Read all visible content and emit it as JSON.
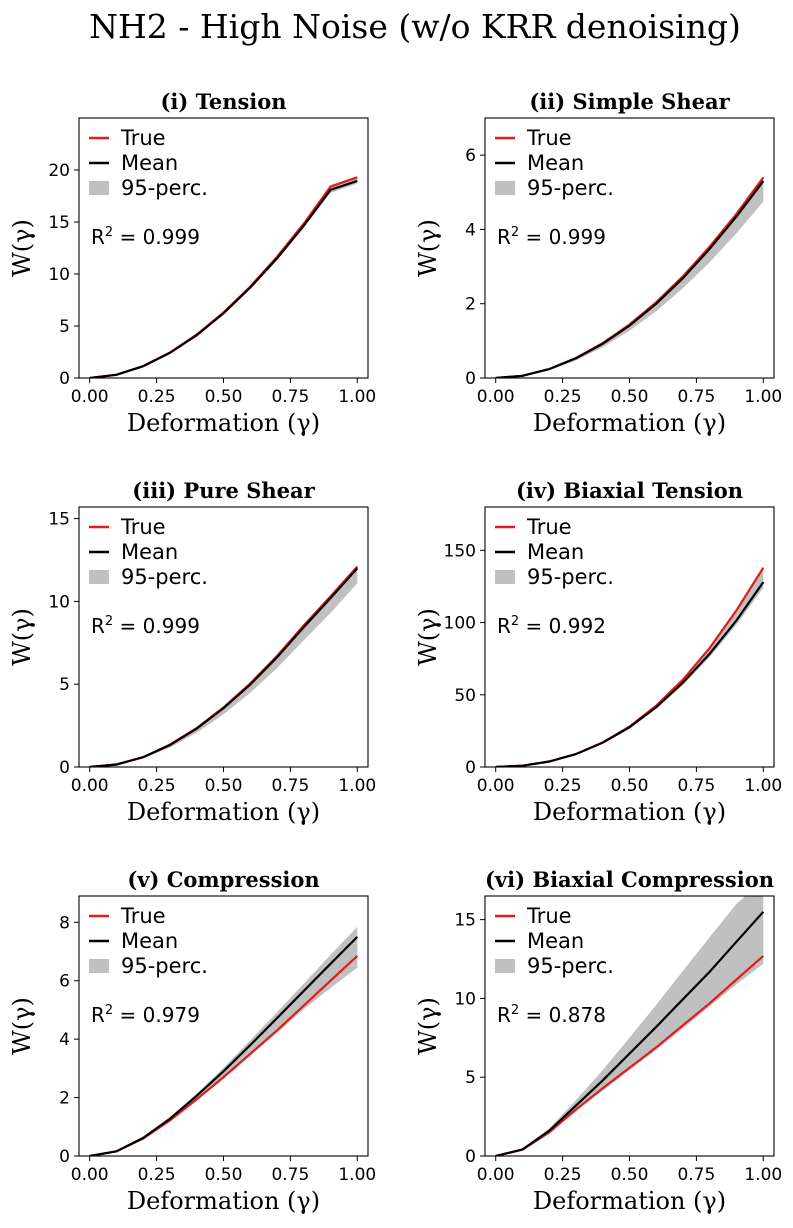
{
  "figure": {
    "title": "NH2 - High Noise (w/o KRR denoising)",
    "colors": {
      "true": "#e41a1c",
      "mean": "#000000",
      "band": "#c0c0c0"
    },
    "legend": {
      "true": "True",
      "mean": "Mean",
      "band": "95-perc."
    }
  },
  "chart_data": [
    {
      "type": "line",
      "title": "(i) Tension",
      "xlabel": "Deformation (γ)",
      "ylabel": "W(γ)",
      "xlim": [
        -0.04,
        1.04
      ],
      "ylim": [
        0,
        25
      ],
      "xticks": [
        "0.00",
        "0.25",
        "0.50",
        "0.75",
        "1.00"
      ],
      "yticks": [
        0,
        5,
        10,
        15,
        20
      ],
      "r2": "0.999",
      "x": [
        0,
        0.1,
        0.2,
        0.3,
        0.4,
        0.5,
        0.6,
        0.7,
        0.8,
        0.9,
        1.0
      ],
      "series": [
        {
          "name": "True",
          "values": [
            0,
            0.32,
            1.15,
            2.45,
            4.17,
            6.3,
            8.8,
            11.65,
            14.85,
            18.4,
            19.3
          ]
        },
        {
          "name": "Mean",
          "values": [
            0,
            0.31,
            1.13,
            2.42,
            4.12,
            6.22,
            8.7,
            11.5,
            14.65,
            18.1,
            18.95
          ]
        },
        {
          "name": "95-perc.",
          "lower": [
            0,
            0.3,
            1.1,
            2.38,
            4.06,
            6.14,
            8.58,
            11.34,
            14.45,
            17.8,
            18.7
          ],
          "upper": [
            0,
            0.33,
            1.17,
            2.47,
            4.2,
            6.33,
            8.83,
            11.7,
            14.9,
            18.45,
            19.35
          ]
        }
      ]
    },
    {
      "type": "line",
      "title": "(ii) Simple Shear",
      "xlabel": "Deformation (γ)",
      "ylabel": "W(γ)",
      "xlim": [
        -0.04,
        1.04
      ],
      "ylim": [
        0,
        7
      ],
      "xticks": [
        "0.00",
        "0.25",
        "0.50",
        "0.75",
        "1.00"
      ],
      "yticks": [
        0,
        2,
        4,
        6
      ],
      "r2": "0.999",
      "x": [
        0,
        0.1,
        0.2,
        0.3,
        0.4,
        0.5,
        0.6,
        0.7,
        0.8,
        0.9,
        1.0
      ],
      "series": [
        {
          "name": "True",
          "values": [
            0,
            0.06,
            0.24,
            0.54,
            0.94,
            1.44,
            2.04,
            2.74,
            3.54,
            4.42,
            5.4
          ]
        },
        {
          "name": "Mean",
          "values": [
            0,
            0.06,
            0.24,
            0.53,
            0.92,
            1.41,
            2.0,
            2.69,
            3.48,
            4.35,
            5.3
          ]
        },
        {
          "name": "95-perc.",
          "lower": [
            0,
            0.05,
            0.21,
            0.47,
            0.83,
            1.27,
            1.8,
            2.42,
            3.12,
            3.9,
            4.75
          ],
          "upper": [
            0,
            0.06,
            0.25,
            0.55,
            0.95,
            1.45,
            2.05,
            2.76,
            3.56,
            4.45,
            5.43
          ]
        }
      ]
    },
    {
      "type": "line",
      "title": "(iii) Pure Shear",
      "xlabel": "Deformation (γ)",
      "ylabel": "W(γ)",
      "xlim": [
        -0.04,
        1.04
      ],
      "ylim": [
        0,
        15.7
      ],
      "xticks": [
        "0.00",
        "0.25",
        "0.50",
        "0.75",
        "1.00"
      ],
      "yticks": [
        0,
        5,
        10,
        15
      ],
      "r2": "0.999",
      "x": [
        0,
        0.1,
        0.2,
        0.3,
        0.4,
        0.5,
        0.6,
        0.7,
        0.8,
        0.9,
        1.0
      ],
      "series": [
        {
          "name": "True",
          "values": [
            0,
            0.15,
            0.6,
            1.35,
            2.35,
            3.6,
            5.05,
            6.7,
            8.55,
            10.3,
            12.1
          ]
        },
        {
          "name": "Mean",
          "values": [
            0,
            0.15,
            0.59,
            1.33,
            2.32,
            3.55,
            4.98,
            6.62,
            8.45,
            10.2,
            12.0
          ]
        },
        {
          "name": "95-perc.",
          "lower": [
            0,
            0.13,
            0.52,
            1.18,
            2.07,
            3.18,
            4.48,
            5.97,
            7.65,
            9.3,
            11.1
          ],
          "upper": [
            0,
            0.16,
            0.61,
            1.36,
            2.37,
            3.62,
            5.08,
            6.74,
            8.6,
            10.36,
            12.2
          ]
        }
      ]
    },
    {
      "type": "line",
      "title": "(iv) Biaxial Tension",
      "xlabel": "Deformation (γ)",
      "ylabel": "W(γ)",
      "xlim": [
        -0.04,
        1.04
      ],
      "ylim": [
        0,
        180
      ],
      "xticks": [
        "0.00",
        "0.25",
        "0.50",
        "0.75",
        "1.00"
      ],
      "yticks": [
        0,
        50,
        100,
        150
      ],
      "r2": "0.992",
      "x": [
        0,
        0.1,
        0.2,
        0.3,
        0.4,
        0.5,
        0.6,
        0.7,
        0.8,
        0.9,
        1.0
      ],
      "series": [
        {
          "name": "True",
          "values": [
            0,
            0.9,
            3.8,
            9.0,
            17.0,
            28.0,
            42.5,
            60.5,
            82.5,
            108.5,
            138.0
          ]
        },
        {
          "name": "Mean",
          "values": [
            0,
            0.9,
            3.8,
            8.9,
            16.8,
            27.5,
            41.5,
            58.5,
            78.5,
            101.5,
            128.0
          ]
        },
        {
          "name": "95-perc.",
          "lower": [
            0,
            0.88,
            3.7,
            8.7,
            16.4,
            26.8,
            40.4,
            56.8,
            76.2,
            98.5,
            124.0
          ],
          "upper": [
            0,
            0.92,
            3.9,
            9.1,
            17.2,
            28.2,
            42.7,
            60.7,
            82.7,
            108.7,
            138.2
          ]
        }
      ]
    },
    {
      "type": "line",
      "title": "(v) Compression",
      "xlabel": "Deformation (γ)",
      "ylabel": "W(γ)",
      "xlim": [
        -0.04,
        1.04
      ],
      "ylim": [
        0,
        8.9
      ],
      "xticks": [
        "0.00",
        "0.25",
        "0.50",
        "0.75",
        "1.00"
      ],
      "yticks": [
        0,
        2,
        4,
        6,
        8
      ],
      "r2": "0.979",
      "x": [
        0,
        0.1,
        0.2,
        0.3,
        0.4,
        0.5,
        0.6,
        0.7,
        0.8,
        0.9,
        1.0
      ],
      "series": [
        {
          "name": "True",
          "values": [
            0,
            0.16,
            0.6,
            1.22,
            1.94,
            2.7,
            3.5,
            4.3,
            5.15,
            6.0,
            6.85
          ]
        },
        {
          "name": "Mean",
          "values": [
            0,
            0.16,
            0.62,
            1.28,
            2.06,
            2.9,
            3.8,
            4.72,
            5.65,
            6.58,
            7.5
          ]
        },
        {
          "name": "95-perc.",
          "lower": [
            0,
            0.15,
            0.58,
            1.2,
            1.9,
            2.65,
            3.44,
            4.22,
            5.02,
            5.75,
            6.45
          ],
          "upper": [
            0,
            0.17,
            0.64,
            1.32,
            2.13,
            3.02,
            3.96,
            4.92,
            5.9,
            6.88,
            7.85
          ]
        }
      ]
    },
    {
      "type": "line",
      "title": "(vi) Biaxial Compression",
      "xlabel": "Deformation (γ)",
      "ylabel": "W(γ)",
      "xlim": [
        -0.04,
        1.04
      ],
      "ylim": [
        0,
        16.5
      ],
      "xticks": [
        "0.00",
        "0.25",
        "0.50",
        "0.75",
        "1.00"
      ],
      "yticks": [
        0,
        5,
        10,
        15
      ],
      "r2": "0.878",
      "x": [
        0,
        0.1,
        0.2,
        0.3,
        0.4,
        0.5,
        0.6,
        0.7,
        0.8,
        0.9,
        1.0
      ],
      "series": [
        {
          "name": "True",
          "values": [
            0,
            0.4,
            1.5,
            2.95,
            4.3,
            5.6,
            6.9,
            8.3,
            9.7,
            11.2,
            12.7
          ]
        },
        {
          "name": "Mean",
          "values": [
            0,
            0.42,
            1.6,
            3.2,
            4.8,
            6.5,
            8.2,
            9.95,
            11.7,
            13.6,
            15.5
          ]
        },
        {
          "name": "95-perc.",
          "lower": [
            0,
            0.38,
            1.45,
            2.85,
            4.15,
            5.45,
            6.75,
            8.1,
            9.5,
            10.9,
            12.2
          ],
          "upper": [
            0,
            0.46,
            1.75,
            3.55,
            5.45,
            7.5,
            9.6,
            11.75,
            13.9,
            16.0,
            17.5
          ]
        }
      ]
    }
  ]
}
